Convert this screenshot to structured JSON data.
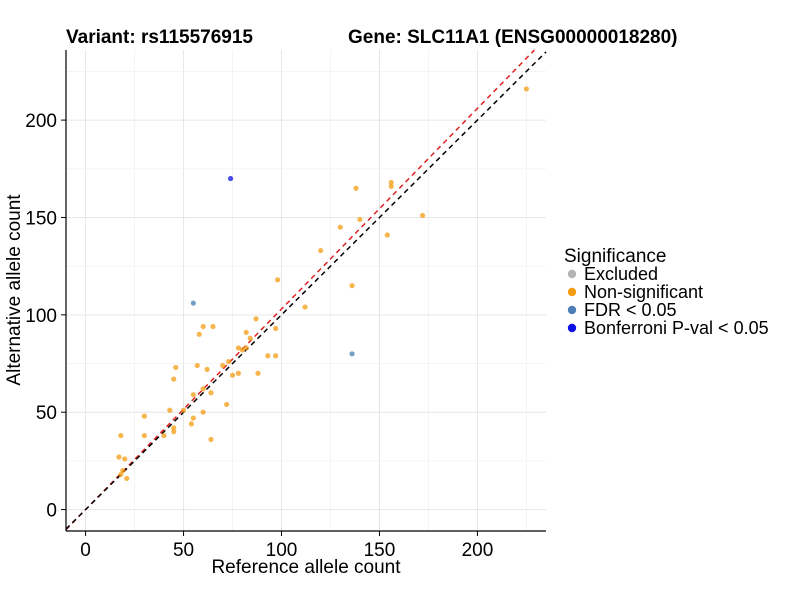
{
  "chart_data": {
    "type": "scatter",
    "title_left": "Variant: rs115576915",
    "title_right": "Gene: SLC11A1 (ENSG00000018280)",
    "xlabel": "Reference allele count",
    "ylabel": "Alternative allele count",
    "xlim": [
      -10,
      235
    ],
    "ylim": [
      -11,
      236
    ],
    "xticks": [
      0,
      50,
      100,
      150,
      200
    ],
    "yticks": [
      0,
      50,
      100,
      150,
      200
    ],
    "grid": true,
    "legend": {
      "title": "Significance",
      "position": "right",
      "entries": [
        {
          "label": "Excluded",
          "color": "#b3b3b3"
        },
        {
          "label": "Non-significant",
          "color": "#f39c12"
        },
        {
          "label": "FDR < 0.05",
          "color": "#4a7eb5"
        },
        {
          "label": "Bonferroni P-val < 0.05",
          "color": "#0b10e6"
        }
      ]
    },
    "reference_lines": [
      {
        "name": "red-diagonal",
        "color": "#e02020",
        "slope": 1.03,
        "intercept": 0
      },
      {
        "name": "black-diagonal",
        "color": "#000000",
        "slope": 1.0,
        "intercept": 0
      }
    ],
    "series": [
      {
        "name": "Excluded",
        "color": "#b3b3b3",
        "points": []
      },
      {
        "name": "Non-significant",
        "color": "#f39c12",
        "points": [
          [
            225,
            216
          ],
          [
            172,
            151
          ],
          [
            156,
            168
          ],
          [
            156,
            166
          ],
          [
            154,
            141
          ],
          [
            140,
            149
          ],
          [
            138,
            165
          ],
          [
            136,
            115
          ],
          [
            130,
            145
          ],
          [
            120,
            133
          ],
          [
            112,
            104
          ],
          [
            98,
            118
          ],
          [
            97,
            93
          ],
          [
            97,
            79
          ],
          [
            93,
            79
          ],
          [
            87,
            98
          ],
          [
            88,
            70
          ],
          [
            84,
            88
          ],
          [
            82,
            83
          ],
          [
            82,
            91
          ],
          [
            80,
            82
          ],
          [
            78,
            83
          ],
          [
            78,
            70
          ],
          [
            75,
            69
          ],
          [
            73,
            76
          ],
          [
            72,
            54
          ],
          [
            70,
            74
          ],
          [
            65,
            94
          ],
          [
            64,
            60
          ],
          [
            64,
            36
          ],
          [
            62,
            72
          ],
          [
            60,
            62
          ],
          [
            60,
            50
          ],
          [
            60,
            94
          ],
          [
            58,
            90
          ],
          [
            57,
            74
          ],
          [
            55,
            59
          ],
          [
            55,
            47
          ],
          [
            54,
            44
          ],
          [
            50,
            51
          ],
          [
            46,
            73
          ],
          [
            45,
            67
          ],
          [
            45,
            42
          ],
          [
            45,
            40
          ],
          [
            43,
            51
          ],
          [
            40,
            38
          ],
          [
            30,
            48
          ],
          [
            30,
            38
          ],
          [
            20,
            26
          ],
          [
            19,
            20
          ],
          [
            18,
            38
          ],
          [
            17,
            27
          ],
          [
            21,
            16
          ],
          [
            18,
            18
          ]
        ]
      },
      {
        "name": "FDR < 0.05",
        "color": "#4a7eb5",
        "points": [
          [
            55,
            106
          ],
          [
            136,
            80
          ]
        ]
      },
      {
        "name": "Bonferroni P-val < 0.05",
        "color": "#0b10e6",
        "points": [
          [
            74,
            170
          ]
        ]
      }
    ]
  }
}
